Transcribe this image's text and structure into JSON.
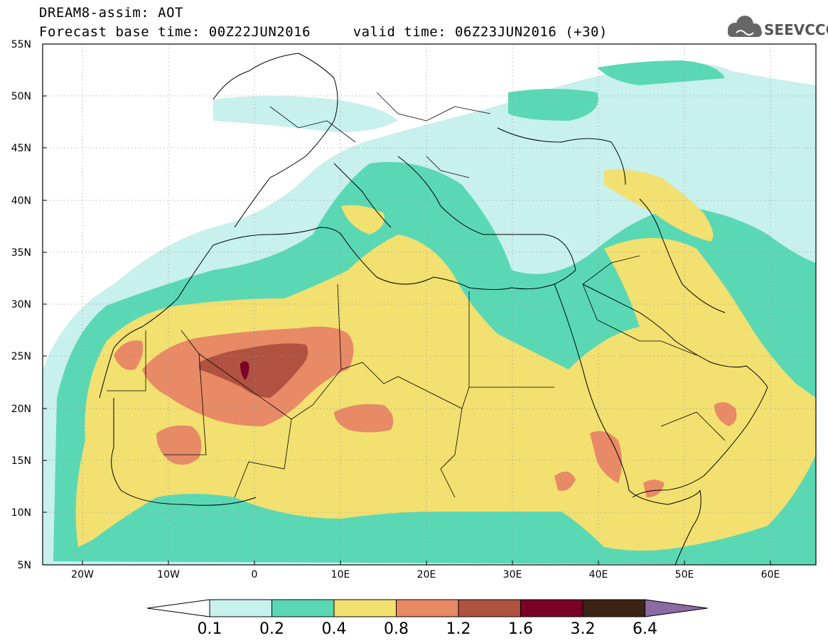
{
  "header": {
    "line1": "DREAM8-assim: AOT",
    "line2": "Forecast base time: 00Z22JUN2016     valid time: 06Z23JUN2016 (+30)"
  },
  "logo": {
    "text": "SEEVCCC",
    "icon": "cloud-icon"
  },
  "map": {
    "lon_range": [
      -25,
      65
    ],
    "lat_range": [
      5,
      55
    ],
    "lat_ticks": [
      "55N",
      "50N",
      "45N",
      "40N",
      "35N",
      "30N",
      "25N",
      "20N",
      "15N",
      "10N",
      "5N"
    ],
    "lon_ticks": [
      "20W",
      "10W",
      "0",
      "10E",
      "20E",
      "30E",
      "40E",
      "50E",
      "60E"
    ],
    "grid": true
  },
  "colorbar": {
    "labels": [
      "0.1",
      "0.2",
      "0.4",
      "0.8",
      "1.2",
      "1.6",
      "3.2",
      "6.4"
    ],
    "colors": [
      "#c8f0ec",
      "#5ad8b4",
      "#f2e070",
      "#e88a66",
      "#b05240",
      "#7a0028",
      "#3c2414",
      "#8c6aa4"
    ],
    "underflow_color": "#ffffff"
  }
}
